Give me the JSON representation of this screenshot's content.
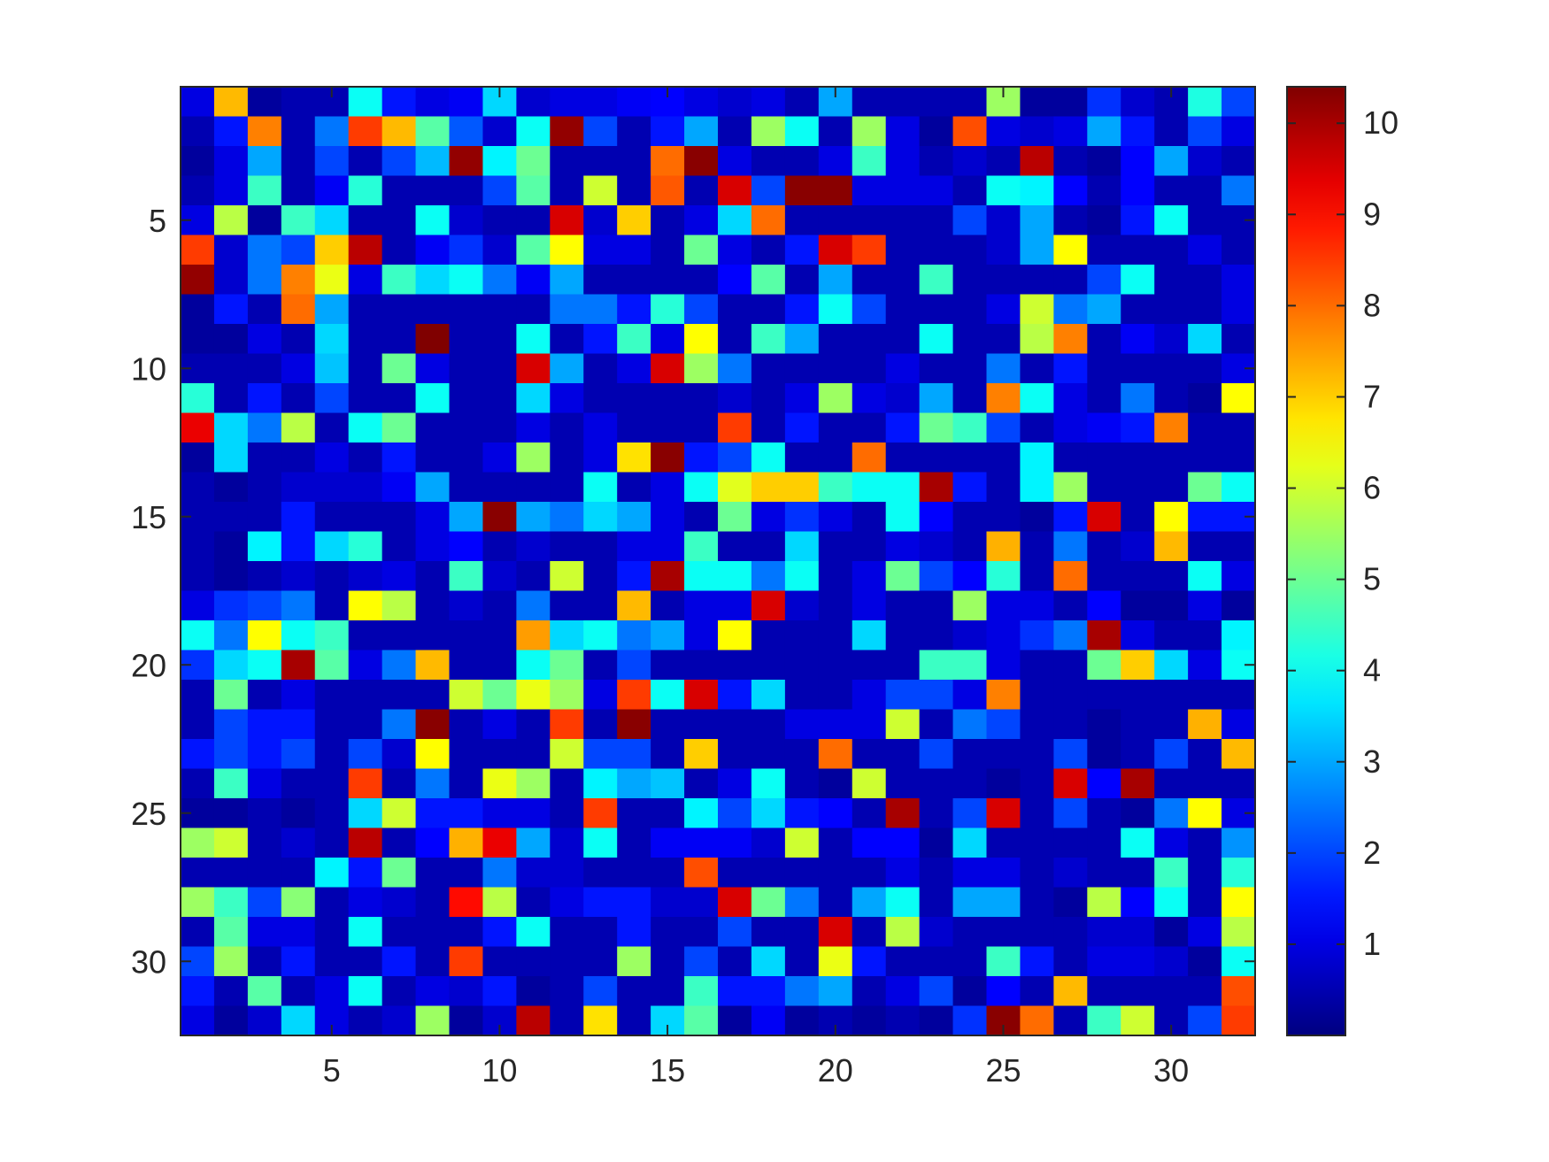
{
  "chart_data": {
    "type": "heatmap",
    "title": "",
    "xlabel": "",
    "ylabel": "",
    "colormap": "jet",
    "color_range": [
      0,
      10.4
    ],
    "n_rows": 32,
    "n_cols": 32,
    "x_ticks": [
      5,
      10,
      15,
      20,
      25,
      30
    ],
    "y_ticks": [
      5,
      10,
      15,
      20,
      25,
      30
    ],
    "colorbar_ticks": [
      1,
      2,
      3,
      4,
      5,
      6,
      7,
      8,
      9,
      10
    ],
    "xlim": [
      0.5,
      32.5
    ],
    "ylim": [
      0.5,
      32.5
    ],
    "y_direction": "reverse",
    "colorbar": "right",
    "values": [
      [
        1.0,
        7.2,
        0.3,
        0.5,
        0.5,
        4.0,
        1.5,
        1.0,
        1.2,
        3.5,
        0.8,
        1.0,
        1.0,
        1.2,
        1.3,
        1.0,
        0.8,
        1.0,
        0.5,
        3.0,
        0.5,
        0.5,
        0.5,
        0.5,
        5.5,
        0.3,
        0.3,
        1.8,
        0.8,
        0.5,
        4.2,
        2.0
      ],
      [
        0.5,
        1.5,
        7.8,
        0.5,
        2.5,
        8.5,
        7.2,
        4.8,
        2.2,
        0.8,
        4.0,
        10.2,
        2.0,
        0.5,
        1.5,
        3.0,
        0.5,
        5.5,
        4.0,
        0.5,
        5.5,
        1.0,
        0.3,
        8.3,
        1.0,
        0.8,
        1.0,
        3.0,
        1.5,
        0.5,
        2.0,
        1.0
      ],
      [
        0.3,
        1.0,
        3.0,
        0.5,
        2.0,
        0.5,
        2.0,
        3.2,
        10.2,
        3.8,
        5.0,
        0.5,
        0.5,
        0.5,
        8.0,
        10.3,
        1.0,
        0.5,
        0.5,
        1.0,
        4.5,
        1.0,
        0.5,
        0.8,
        0.5,
        9.8,
        0.5,
        0.3,
        1.3,
        3.0,
        0.8,
        0.5
      ],
      [
        0.5,
        1.0,
        4.5,
        0.5,
        1.2,
        4.3,
        0.5,
        0.5,
        0.5,
        2.0,
        4.8,
        0.5,
        6.0,
        0.5,
        8.2,
        0.5,
        9.5,
        2.0,
        10.3,
        10.3,
        1.0,
        1.0,
        1.0,
        0.5,
        4.0,
        3.8,
        1.3,
        0.5,
        1.3,
        0.5,
        0.5,
        2.5
      ],
      [
        1.0,
        5.8,
        0.3,
        4.5,
        3.5,
        0.5,
        0.5,
        4.0,
        0.8,
        0.5,
        0.5,
        9.5,
        0.8,
        7.0,
        0.5,
        1.0,
        3.5,
        8.0,
        0.5,
        0.5,
        0.5,
        0.5,
        0.5,
        2.0,
        0.8,
        3.0,
        0.5,
        0.3,
        1.5,
        4.0,
        0.5,
        0.5
      ],
      [
        8.5,
        0.8,
        2.5,
        2.0,
        7.0,
        9.8,
        0.5,
        1.2,
        1.8,
        0.8,
        4.8,
        6.5,
        1.0,
        1.0,
        0.5,
        5.0,
        1.0,
        0.5,
        1.5,
        9.5,
        8.5,
        0.5,
        0.5,
        0.5,
        0.8,
        3.0,
        6.5,
        0.5,
        0.5,
        0.5,
        1.0,
        0.5
      ],
      [
        10.2,
        0.8,
        2.5,
        7.8,
        6.3,
        1.0,
        4.5,
        3.5,
        4.0,
        2.5,
        1.2,
        3.0,
        0.5,
        0.5,
        0.5,
        0.5,
        1.3,
        4.8,
        0.5,
        3.0,
        0.5,
        0.5,
        4.5,
        0.5,
        0.5,
        0.5,
        0.5,
        2.0,
        4.0,
        0.5,
        0.5,
        1.0
      ],
      [
        0.3,
        1.5,
        0.5,
        8.0,
        3.0,
        0.5,
        0.5,
        0.5,
        0.5,
        0.5,
        0.5,
        2.5,
        2.5,
        1.5,
        4.3,
        2.0,
        0.5,
        0.5,
        1.5,
        4.0,
        2.0,
        0.5,
        0.5,
        0.5,
        1.0,
        6.0,
        2.5,
        3.0,
        0.5,
        0.5,
        0.5,
        1.0
      ],
      [
        0.3,
        0.3,
        1.0,
        0.5,
        3.5,
        0.5,
        0.5,
        10.5,
        0.5,
        0.5,
        4.0,
        0.5,
        1.5,
        4.5,
        1.0,
        6.5,
        0.5,
        4.5,
        3.0,
        0.5,
        0.5,
        0.5,
        4.0,
        0.5,
        0.5,
        5.8,
        7.8,
        0.5,
        1.2,
        0.8,
        3.5,
        0.5
      ],
      [
        0.5,
        0.5,
        0.5,
        1.0,
        3.3,
        0.5,
        5.0,
        1.0,
        0.5,
        0.5,
        9.5,
        3.0,
        0.5,
        1.0,
        9.5,
        5.5,
        2.5,
        0.5,
        0.5,
        0.5,
        0.5,
        1.0,
        0.5,
        0.5,
        2.5,
        0.5,
        1.5,
        0.5,
        0.5,
        0.5,
        0.5,
        1.0
      ],
      [
        4.3,
        0.5,
        1.5,
        0.5,
        2.0,
        0.5,
        0.5,
        4.0,
        0.5,
        0.5,
        3.5,
        1.0,
        0.5,
        0.5,
        0.5,
        0.5,
        0.8,
        0.5,
        1.0,
        5.5,
        1.0,
        0.8,
        3.0,
        0.5,
        7.8,
        4.0,
        1.0,
        0.5,
        2.5,
        0.5,
        0.3,
        6.5
      ],
      [
        9.3,
        3.5,
        2.5,
        5.8,
        0.5,
        4.0,
        5.0,
        0.5,
        0.5,
        0.5,
        1.0,
        0.5,
        1.0,
        0.5,
        0.5,
        0.5,
        8.5,
        0.5,
        1.5,
        0.5,
        0.5,
        1.5,
        5.0,
        4.5,
        2.0,
        0.5,
        1.0,
        1.2,
        1.5,
        7.8,
        0.5,
        0.5
      ],
      [
        0.3,
        3.5,
        0.5,
        0.5,
        1.0,
        0.5,
        1.5,
        0.5,
        0.5,
        1.0,
        5.5,
        0.5,
        1.0,
        6.8,
        10.3,
        1.5,
        2.0,
        4.0,
        0.5,
        0.5,
        8.0,
        0.5,
        0.5,
        0.5,
        0.5,
        3.8,
        0.5,
        0.5,
        0.5,
        0.5,
        0.5,
        0.5
      ],
      [
        0.5,
        0.3,
        0.5,
        0.8,
        0.8,
        0.8,
        1.2,
        3.0,
        0.5,
        0.5,
        0.5,
        0.5,
        4.0,
        0.5,
        1.0,
        4.0,
        6.2,
        7.0,
        7.0,
        4.5,
        4.0,
        4.0,
        10.0,
        1.5,
        0.5,
        3.8,
        5.5,
        0.5,
        0.5,
        0.5,
        5.0,
        4.0
      ],
      [
        0.5,
        0.5,
        0.5,
        1.5,
        0.5,
        0.5,
        0.5,
        1.0,
        3.0,
        10.3,
        3.0,
        2.5,
        3.5,
        3.0,
        1.0,
        0.5,
        5.0,
        1.0,
        1.8,
        1.0,
        0.5,
        4.0,
        1.3,
        0.5,
        0.5,
        0.3,
        1.5,
        9.5,
        0.5,
        6.5,
        1.5,
        1.5
      ],
      [
        0.5,
        0.3,
        3.8,
        1.5,
        3.5,
        4.3,
        0.5,
        1.0,
        1.3,
        0.5,
        0.8,
        0.5,
        0.5,
        1.0,
        1.0,
        4.5,
        0.5,
        0.5,
        3.5,
        0.5,
        0.5,
        1.0,
        0.8,
        0.5,
        7.3,
        0.5,
        2.5,
        0.5,
        0.8,
        7.2,
        0.5,
        0.5
      ],
      [
        0.5,
        0.3,
        0.5,
        0.8,
        0.5,
        0.8,
        1.0,
        0.5,
        4.5,
        0.8,
        0.5,
        6.0,
        0.5,
        1.5,
        10.0,
        4.0,
        4.0,
        2.5,
        4.0,
        0.5,
        1.0,
        5.0,
        2.0,
        1.3,
        4.3,
        0.5,
        8.0,
        0.5,
        0.5,
        0.5,
        4.0,
        1.0
      ],
      [
        1.0,
        1.8,
        2.0,
        2.5,
        0.5,
        6.5,
        5.8,
        0.5,
        0.8,
        0.5,
        2.5,
        0.5,
        0.5,
        7.2,
        0.5,
        1.0,
        1.0,
        9.5,
        0.8,
        0.5,
        1.0,
        0.5,
        0.5,
        5.5,
        1.0,
        1.0,
        0.5,
        1.3,
        0.3,
        0.3,
        1.0,
        0.3
      ],
      [
        4.0,
        2.5,
        6.5,
        4.0,
        4.5,
        0.5,
        0.5,
        0.5,
        0.5,
        0.5,
        7.5,
        3.5,
        4.0,
        2.5,
        3.0,
        1.0,
        6.5,
        0.5,
        0.5,
        0.5,
        3.5,
        0.5,
        0.5,
        0.8,
        1.0,
        1.8,
        2.5,
        10.0,
        1.0,
        0.5,
        0.5,
        3.8
      ],
      [
        1.8,
        3.5,
        4.0,
        10.0,
        4.8,
        1.0,
        2.5,
        7.2,
        0.5,
        0.5,
        4.0,
        5.0,
        0.5,
        2.0,
        0.5,
        0.5,
        0.5,
        0.5,
        0.5,
        0.5,
        0.5,
        0.5,
        4.5,
        4.5,
        1.0,
        0.5,
        0.5,
        5.0,
        7.0,
        3.5,
        1.0,
        4.0
      ],
      [
        0.5,
        5.0,
        0.5,
        1.0,
        0.5,
        0.5,
        0.5,
        0.5,
        6.0,
        5.0,
        6.3,
        5.5,
        1.0,
        8.5,
        4.0,
        9.5,
        1.5,
        3.5,
        0.5,
        0.5,
        1.0,
        2.0,
        2.0,
        1.0,
        7.8,
        0.5,
        0.5,
        0.5,
        0.5,
        0.5,
        0.5,
        0.5
      ],
      [
        0.5,
        2.0,
        1.5,
        1.5,
        0.5,
        0.5,
        2.5,
        10.3,
        0.5,
        1.0,
        0.5,
        8.5,
        0.5,
        10.3,
        0.5,
        0.5,
        0.5,
        0.5,
        1.0,
        1.0,
        1.0,
        6.0,
        0.5,
        2.5,
        2.0,
        0.5,
        0.5,
        0.3,
        0.5,
        0.5,
        7.3,
        1.0
      ],
      [
        1.5,
        2.0,
        1.5,
        2.0,
        0.5,
        2.0,
        0.8,
        6.5,
        0.5,
        0.5,
        0.5,
        6.0,
        2.0,
        2.0,
        0.5,
        7.0,
        0.5,
        0.5,
        0.5,
        8.0,
        0.5,
        0.5,
        2.0,
        0.5,
        0.5,
        0.5,
        2.0,
        0.3,
        0.5,
        2.0,
        0.5,
        7.2
      ],
      [
        0.5,
        4.5,
        1.0,
        0.5,
        0.5,
        8.5,
        0.5,
        2.5,
        0.5,
        6.3,
        5.5,
        0.5,
        3.8,
        3.0,
        3.3,
        0.5,
        1.0,
        4.0,
        0.5,
        0.3,
        6.0,
        0.5,
        0.5,
        0.5,
        0.3,
        0.5,
        9.5,
        1.3,
        10.0,
        0.5,
        0.5,
        0.5
      ],
      [
        0.3,
        0.3,
        0.5,
        0.3,
        0.5,
        3.5,
        6.0,
        1.5,
        1.5,
        1.0,
        1.0,
        0.5,
        8.5,
        0.5,
        0.5,
        3.8,
        2.0,
        3.5,
        1.5,
        1.3,
        0.5,
        10.0,
        0.5,
        2.0,
        9.5,
        0.5,
        2.0,
        0.5,
        0.3,
        2.5,
        6.5,
        1.0
      ],
      [
        5.5,
        6.0,
        0.5,
        0.8,
        0.5,
        9.8,
        0.5,
        1.3,
        7.3,
        9.3,
        3.0,
        0.8,
        4.0,
        0.5,
        1.2,
        1.2,
        1.2,
        0.8,
        6.0,
        0.5,
        1.3,
        1.3,
        0.3,
        3.5,
        0.5,
        0.5,
        0.5,
        0.5,
        4.0,
        1.0,
        0.5,
        2.8
      ],
      [
        0.5,
        0.5,
        0.5,
        0.5,
        3.8,
        1.5,
        5.0,
        0.5,
        0.5,
        2.5,
        0.8,
        0.8,
        0.5,
        0.5,
        0.5,
        8.3,
        0.5,
        0.5,
        0.5,
        0.5,
        0.5,
        1.0,
        0.5,
        1.0,
        1.0,
        0.5,
        0.8,
        0.5,
        0.5,
        4.5,
        0.5,
        4.3
      ],
      [
        5.5,
        4.5,
        2.0,
        5.3,
        0.5,
        1.0,
        0.8,
        0.5,
        9.0,
        5.8,
        0.5,
        1.0,
        1.5,
        1.5,
        0.8,
        0.8,
        9.5,
        5.0,
        2.5,
        0.5,
        3.0,
        4.0,
        0.5,
        3.0,
        3.0,
        0.5,
        0.3,
        5.8,
        1.3,
        4.0,
        0.5,
        6.5
      ],
      [
        0.5,
        4.8,
        1.0,
        1.0,
        0.5,
        4.0,
        0.5,
        0.5,
        0.5,
        1.5,
        4.0,
        0.5,
        0.5,
        1.5,
        0.5,
        0.5,
        2.0,
        0.5,
        0.5,
        9.5,
        0.5,
        5.8,
        0.8,
        0.5,
        0.5,
        0.5,
        0.5,
        0.8,
        0.8,
        0.3,
        1.0,
        5.8
      ],
      [
        2.0,
        5.5,
        0.5,
        1.5,
        0.5,
        0.5,
        1.5,
        0.5,
        8.5,
        0.5,
        0.5,
        0.5,
        0.5,
        5.5,
        0.5,
        2.0,
        0.5,
        3.5,
        0.5,
        6.3,
        1.5,
        0.5,
        0.5,
        0.5,
        4.5,
        1.5,
        0.5,
        1.0,
        1.0,
        0.8,
        0.3,
        4.0
      ],
      [
        1.5,
        0.5,
        4.8,
        0.5,
        1.0,
        4.0,
        0.5,
        1.0,
        0.8,
        1.5,
        0.3,
        0.5,
        2.0,
        0.5,
        0.5,
        4.5,
        1.5,
        1.5,
        2.5,
        3.0,
        0.5,
        1.0,
        2.0,
        0.3,
        1.3,
        0.5,
        7.2,
        0.5,
        0.5,
        0.5,
        0.5,
        8.3
      ],
      [
        1.0,
        0.3,
        0.8,
        3.5,
        1.0,
        0.5,
        0.8,
        5.5,
        0.3,
        0.8,
        9.8,
        0.5,
        6.8,
        0.5,
        3.5,
        4.8,
        0.3,
        1.2,
        0.3,
        0.5,
        0.3,
        0.5,
        0.3,
        1.8,
        10.3,
        8.0,
        0.5,
        4.5,
        6.0,
        0.5,
        2.0,
        8.5
      ]
    ]
  }
}
